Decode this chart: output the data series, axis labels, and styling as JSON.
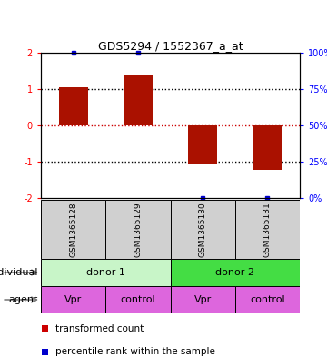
{
  "title": "GDS5294 / 1552367_a_at",
  "samples": [
    "GSM1365128",
    "GSM1365129",
    "GSM1365130",
    "GSM1365131"
  ],
  "bar_values": [
    1.05,
    1.38,
    -1.08,
    -1.22
  ],
  "percentile_high": [
    100,
    100
  ],
  "percentile_low": [
    10,
    10
  ],
  "bar_color": "#aa1100",
  "percentile_color": "#0000cc",
  "ylim": [
    -2,
    2
  ],
  "yticks_left": [
    -2,
    -1,
    0,
    1,
    2
  ],
  "ytick_labels_right": [
    "0%",
    "25%",
    "50%",
    "75%",
    "100%"
  ],
  "hline_0_color": "#cc0000",
  "hline_other_color": "#000000",
  "individual_colors": [
    "#c8f5c8",
    "#44dd44"
  ],
  "agent_color": "#dd66dd",
  "legend_items": [
    {
      "label": "transformed count",
      "color": "#cc0000"
    },
    {
      "label": "percentile rank within the sample",
      "color": "#0000cc"
    }
  ],
  "fig_width": 3.6,
  "fig_height": 3.93
}
